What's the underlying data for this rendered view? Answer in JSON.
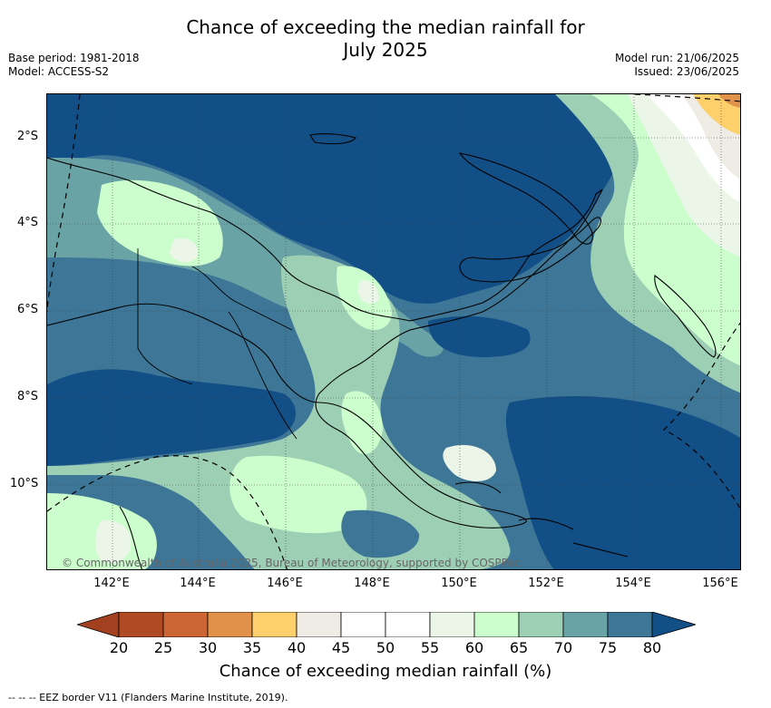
{
  "header": {
    "title_line1": "Chance of exceeding the median rainfall for",
    "title_line2": "July 2025",
    "base_period": "Base period: 1981-2018",
    "model": "Model: ACCESS-S2",
    "model_run": "Model run: 21/06/2025",
    "issued": "Issued: 23/06/2025"
  },
  "map": {
    "lat_labels": [
      "2°S",
      "4°S",
      "6°S",
      "8°S",
      "10°S"
    ],
    "lon_labels": [
      "142°E",
      "144°E",
      "146°E",
      "148°E",
      "150°E",
      "152°E",
      "154°E",
      "156°E"
    ],
    "copyright": "© Commonwealth of Australia 2025, Bureau of Meteorology, supported by COSPPac"
  },
  "colorbar": {
    "ticks": [
      "20",
      "25",
      "30",
      "35",
      "40",
      "45",
      "50",
      "55",
      "60",
      "65",
      "70",
      "75",
      "80"
    ],
    "colors": [
      "#b04a25",
      "#cc6533",
      "#e0914a",
      "#fdd06b",
      "#efebe5",
      "#ffffff",
      "#ffffff",
      "#ebf6e9",
      "#ccfdcc",
      "#9dcfb5",
      "#6aa3a6",
      "#3d7696"
    ],
    "low_color": "#a3401f",
    "high_color": "#124f87",
    "title": "Chance of exceeding median rainfall (%)"
  },
  "footer": {
    "legend": "--  --  -- EEZ border V11 (Flanders Marine Institute, 2019)."
  }
}
